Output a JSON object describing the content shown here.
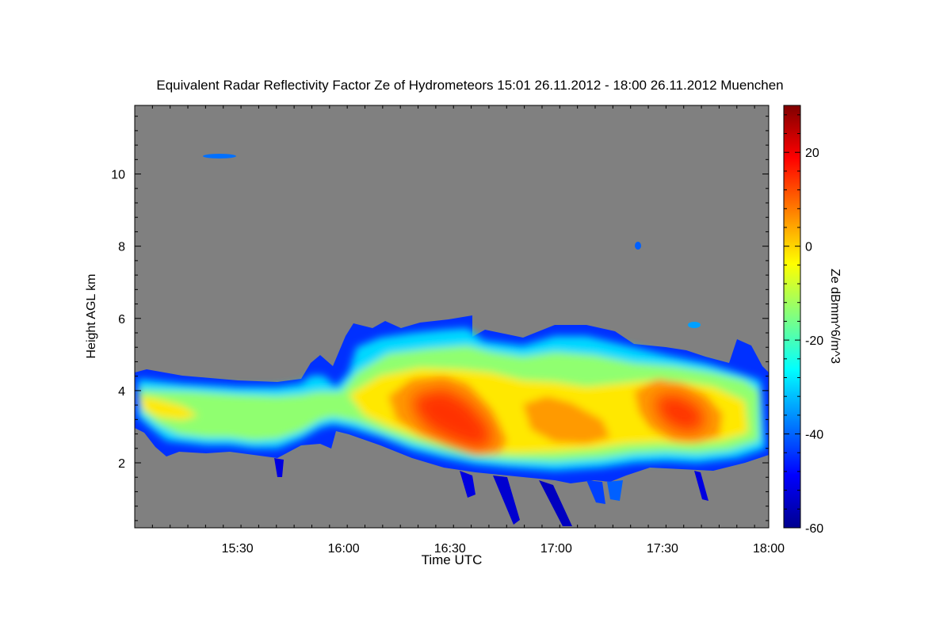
{
  "chart_data": {
    "type": "heatmap",
    "title": "Equivalent Radar Reflectivity Factor Ze of Hydrometeors   15:01 26.11.2012 - 18:00 26.11.2012 Muenchen",
    "xlabel": "Time UTC",
    "ylabel": "Height AGL km",
    "colorbar_label": "Ze dBmm^6/m^3",
    "x_range": [
      "15:01",
      "18:00"
    ],
    "x_ticks": [
      "15:30",
      "16:00",
      "16:30",
      "17:00",
      "17:30",
      "18:00"
    ],
    "y_range": [
      0.2,
      11.9
    ],
    "y_ticks": [
      2,
      4,
      6,
      8,
      10
    ],
    "y_tick_labels": [
      "2",
      "4",
      "6",
      "8",
      "10"
    ],
    "colorbar_range": [
      -60,
      30
    ],
    "colorbar_ticks": [
      20,
      0,
      -20,
      -40,
      -60
    ],
    "colorbar_tick_labels": [
      "20",
      "0",
      "-20",
      "-40",
      "-60"
    ],
    "colormap": [
      "#00008f",
      "#0000ff",
      "#0080ff",
      "#00ffff",
      "#80ff80",
      "#ffff00",
      "#ff8000",
      "#ff0000",
      "#800000"
    ],
    "background_color": "#808080",
    "grid": false,
    "cloud_features": [
      {
        "time": "15:01",
        "base_km": 2.6,
        "top_km": 4.5,
        "core_dbz": -15
      },
      {
        "time": "15:15",
        "base_km": 2.3,
        "top_km": 4.4,
        "core_dbz": -22
      },
      {
        "time": "15:30",
        "base_km": 2.4,
        "top_km": 4.2,
        "core_dbz": -25
      },
      {
        "time": "15:45",
        "base_km": 2.2,
        "top_km": 4.3,
        "core_dbz": -25
      },
      {
        "time": "16:00",
        "base_km": 2.8,
        "top_km": 4.3,
        "core_dbz": -15
      },
      {
        "time": "16:15",
        "base_km": 2.3,
        "top_km": 5.6,
        "core_dbz": 0
      },
      {
        "time": "16:30",
        "base_km": 2.2,
        "top_km": 5.8,
        "core_dbz": 12
      },
      {
        "time": "16:40",
        "base_km": 2.1,
        "top_km": 5.5,
        "core_dbz": 12
      },
      {
        "time": "17:00",
        "base_km": 2.1,
        "top_km": 5.4,
        "core_dbz": 2
      },
      {
        "time": "17:15",
        "base_km": 2.2,
        "top_km": 5.2,
        "core_dbz": -5
      },
      {
        "time": "17:30",
        "base_km": 2.0,
        "top_km": 5.0,
        "core_dbz": 5
      },
      {
        "time": "17:45",
        "base_km": 2.1,
        "top_km": 4.7,
        "core_dbz": 2
      },
      {
        "time": "18:00",
        "base_km": 2.4,
        "top_km": 4.5,
        "core_dbz": -20
      }
    ]
  }
}
